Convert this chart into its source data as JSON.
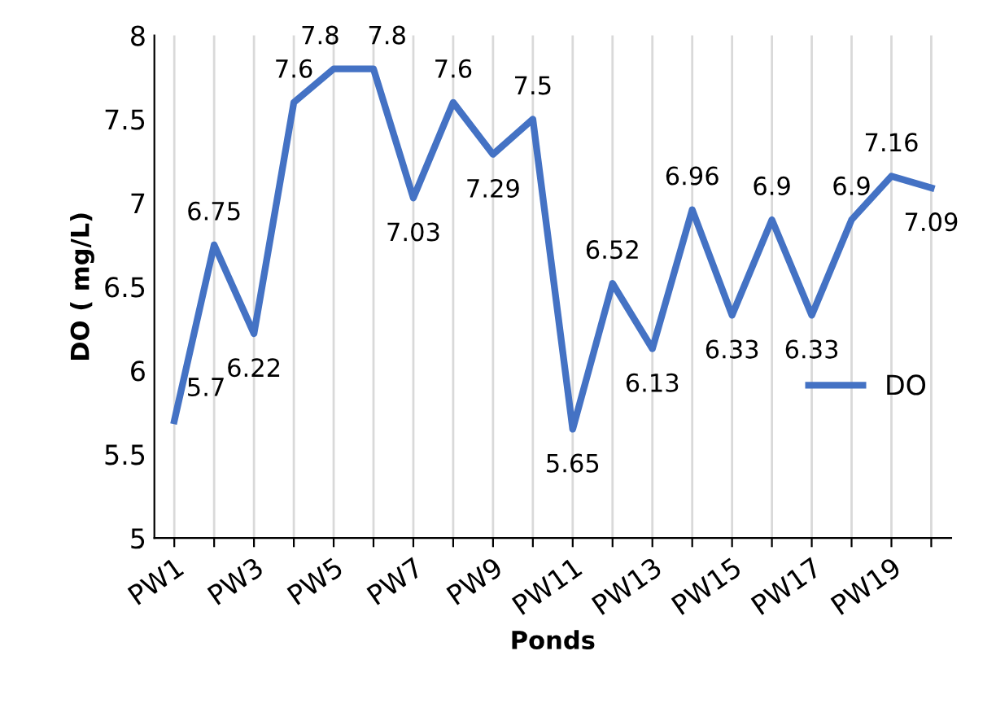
{
  "chart_data": {
    "type": "line",
    "xlabel": "Ponds",
    "ylabel": "DO ( mg/L)",
    "categories": [
      "PW1",
      null,
      "PW3",
      null,
      "PW5",
      null,
      "PW7",
      null,
      "PW9",
      null,
      "PW11",
      null,
      "PW13",
      null,
      "PW15",
      null,
      "PW17",
      null,
      "PW19",
      null
    ],
    "series": [
      {
        "name": "DO",
        "color": "#4472c4",
        "values": [
          5.7,
          6.75,
          6.22,
          7.6,
          7.8,
          7.8,
          7.03,
          7.6,
          7.29,
          7.5,
          5.65,
          6.52,
          6.13,
          6.96,
          6.33,
          6.9,
          6.33,
          6.9,
          7.16,
          7.09
        ]
      }
    ],
    "ylim": [
      5,
      8
    ],
    "yticks": [
      5,
      5.5,
      6,
      6.5,
      7,
      7.5,
      8
    ],
    "grid": "x",
    "legend": "right",
    "marker": "none",
    "line_style": "solid",
    "data_labels": true
  }
}
